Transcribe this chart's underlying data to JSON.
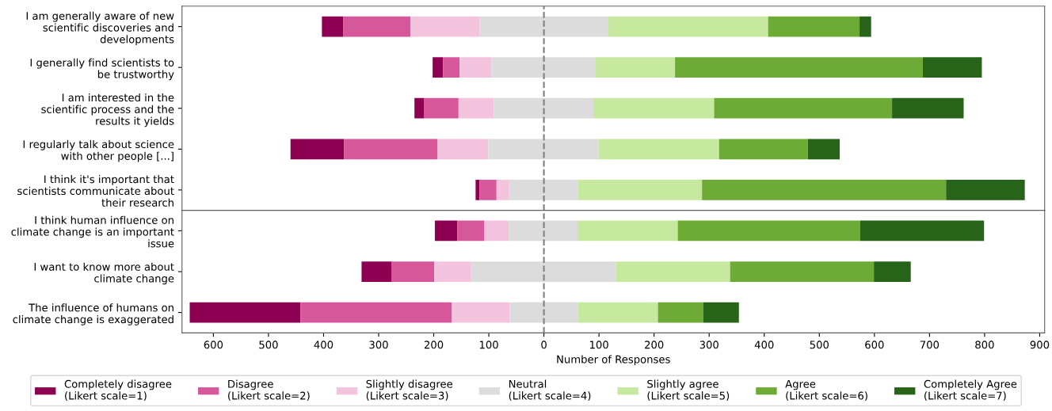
{
  "chart_data": [
    {
      "type": "bar",
      "orientation": "horizontal",
      "tick_labels": "y",
      "categories": [
        "I am generally aware of new\nscientific discoveries and\ndevelopments",
        "I generally find scientists to\nbe trustworthy",
        "I am interested in the\nscientific process and the\nresults it yields",
        "I regularly talk about science\nwith other people [...]",
        "I think it's important that\nscientists communicate about\ntheir research"
      ],
      "series": [
        {
          "color": "#8e0152",
          "base": [
            -403,
            -202,
            -235,
            -460,
            -124
          ],
          "values": [
            39,
            19,
            17,
            97,
            7
          ]
        },
        {
          "color": "#d6589b",
          "base": [
            -364,
            -183,
            -218,
            -363,
            -117
          ],
          "values": [
            122,
            30,
            63,
            170,
            31
          ]
        },
        {
          "color": "#f4c4df",
          "base": [
            -242,
            -153,
            -155,
            -193,
            -86
          ],
          "values": [
            125,
            58,
            64,
            92,
            23
          ]
        },
        {
          "color": "#dcdcdc",
          "base": [
            -117,
            -95,
            -91,
            -101,
            -63
          ],
          "values": [
            233,
            189,
            181,
            200,
            125
          ]
        },
        {
          "color": "#c7e89f",
          "base": [
            116,
            94,
            90,
            99,
            62
          ],
          "values": [
            291,
            144,
            219,
            219,
            225
          ]
        },
        {
          "color": "#6dab36",
          "base": [
            407,
            238,
            309,
            318,
            287
          ],
          "values": [
            166,
            450,
            323,
            161,
            443
          ]
        },
        {
          "color": "#276419",
          "base": [
            573,
            688,
            632,
            479,
            730
          ],
          "values": [
            21,
            107,
            130,
            58,
            143
          ]
        }
      ],
      "xlim": [
        -657,
        909
      ],
      "ref_lines": [
        {
          "axis": "x",
          "value": 0,
          "color": "#808080",
          "line_style": "dashed"
        }
      ],
      "grid": false
    },
    {
      "type": "bar",
      "orientation": "horizontal",
      "xlabel": "Number of Responses",
      "categories": [
        "I think human influence on\nclimate change is an important\nissue",
        "I want to know more about\nclimate change",
        "The influence of humans on\nclimate change is exaggerated"
      ],
      "series": [
        {
          "name": "Completely disagree\n(Likert scale=1)",
          "color": "#8e0152",
          "base": [
            -198,
            -331,
            -643
          ],
          "values": [
            41,
            54,
            201
          ]
        },
        {
          "name": "Disagree\n(Likert scale=2)",
          "color": "#d6589b",
          "base": [
            -157,
            -277,
            -442
          ],
          "values": [
            49,
            78,
            275
          ]
        },
        {
          "name": "Slightly disagree\n(Likert scale=3)",
          "color": "#f4c4df",
          "base": [
            -108,
            -199,
            -167
          ],
          "values": [
            44,
            67,
            105
          ]
        },
        {
          "name": "Neutral\n(Likert scale=4)",
          "color": "#dcdcdc",
          "base": [
            -64,
            -132,
            -62
          ],
          "values": [
            125,
            263,
            124
          ]
        },
        {
          "name": "Slightly agree\n(Likert scale=5)",
          "color": "#c7e89f",
          "base": [
            61,
            131,
            62
          ],
          "values": [
            182,
            207,
            145
          ]
        },
        {
          "name": "Agree\n(Likert scale=6)",
          "color": "#6dab36",
          "base": [
            243,
            338,
            207
          ],
          "values": [
            331,
            261,
            82
          ]
        },
        {
          "name": "Completely Agree\n(Likert scale=7)",
          "color": "#276419",
          "base": [
            574,
            599,
            289
          ],
          "values": [
            225,
            67,
            65
          ]
        }
      ],
      "xlim": [
        -657,
        909
      ],
      "xticks": [
        {
          "value": -600,
          "label": "600"
        },
        {
          "value": -500,
          "label": "500"
        },
        {
          "value": -400,
          "label": "400"
        },
        {
          "value": -300,
          "label": "300"
        },
        {
          "value": -200,
          "label": "200"
        },
        {
          "value": -100,
          "label": "100"
        },
        0,
        100,
        200,
        300,
        400,
        500,
        600,
        700,
        800,
        900
      ],
      "ref_lines": [
        {
          "axis": "x",
          "value": 0,
          "color": "#808080",
          "line_style": "dashed"
        }
      ],
      "legend": "bottom",
      "grid": false
    }
  ]
}
